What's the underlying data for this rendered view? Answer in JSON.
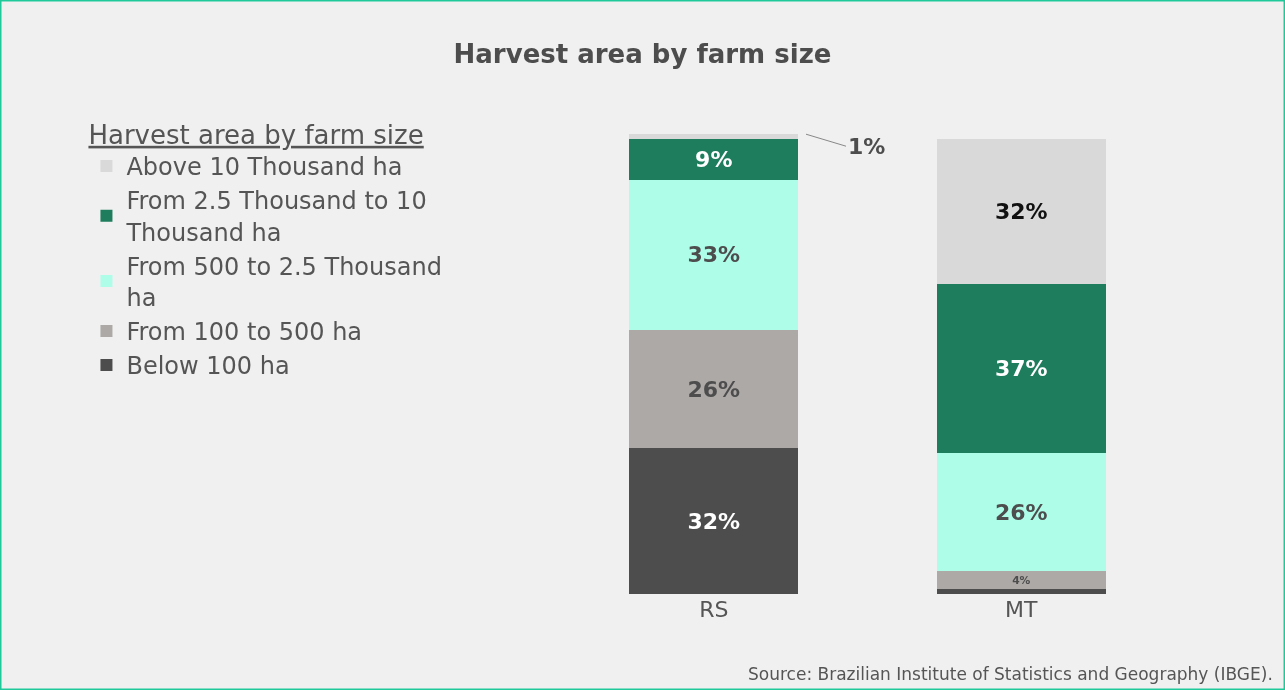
{
  "chart_data": {
    "type": "bar",
    "title": "Harvest area by farm size",
    "legend_title": "Harvest area by farm size",
    "categories": [
      "RS",
      "MT"
    ],
    "stacked": true,
    "legend": "left",
    "series": [
      {
        "name": "Below 100 ha",
        "color": "#4d4d4d",
        "values": [
          32,
          1
        ],
        "value_labels": [
          "32%",
          null
        ]
      },
      {
        "name": "From 100 to 500 ha",
        "color": "#ada9a7",
        "values": [
          26,
          4
        ],
        "value_labels": [
          "26%",
          "4%"
        ]
      },
      {
        "name": "From 500 to 2.5 Thousand ha",
        "color": "#adfde9",
        "values": [
          33,
          26
        ],
        "value_labels": [
          "33%",
          "26%"
        ]
      },
      {
        "name": "From 2.5 Thousand to 10 Thousand ha",
        "color": "#1e7d5c",
        "values": [
          9,
          37
        ],
        "value_labels": [
          "9%",
          "37%"
        ]
      },
      {
        "name": "Above 10 Thousand ha",
        "color": "#d9d9d9",
        "values": [
          1,
          32
        ],
        "value_labels": [
          "1%",
          "32%"
        ]
      }
    ],
    "annotations": [
      "Source: Brazilian Institute of Statistics and Geography (IBGE)."
    ]
  }
}
